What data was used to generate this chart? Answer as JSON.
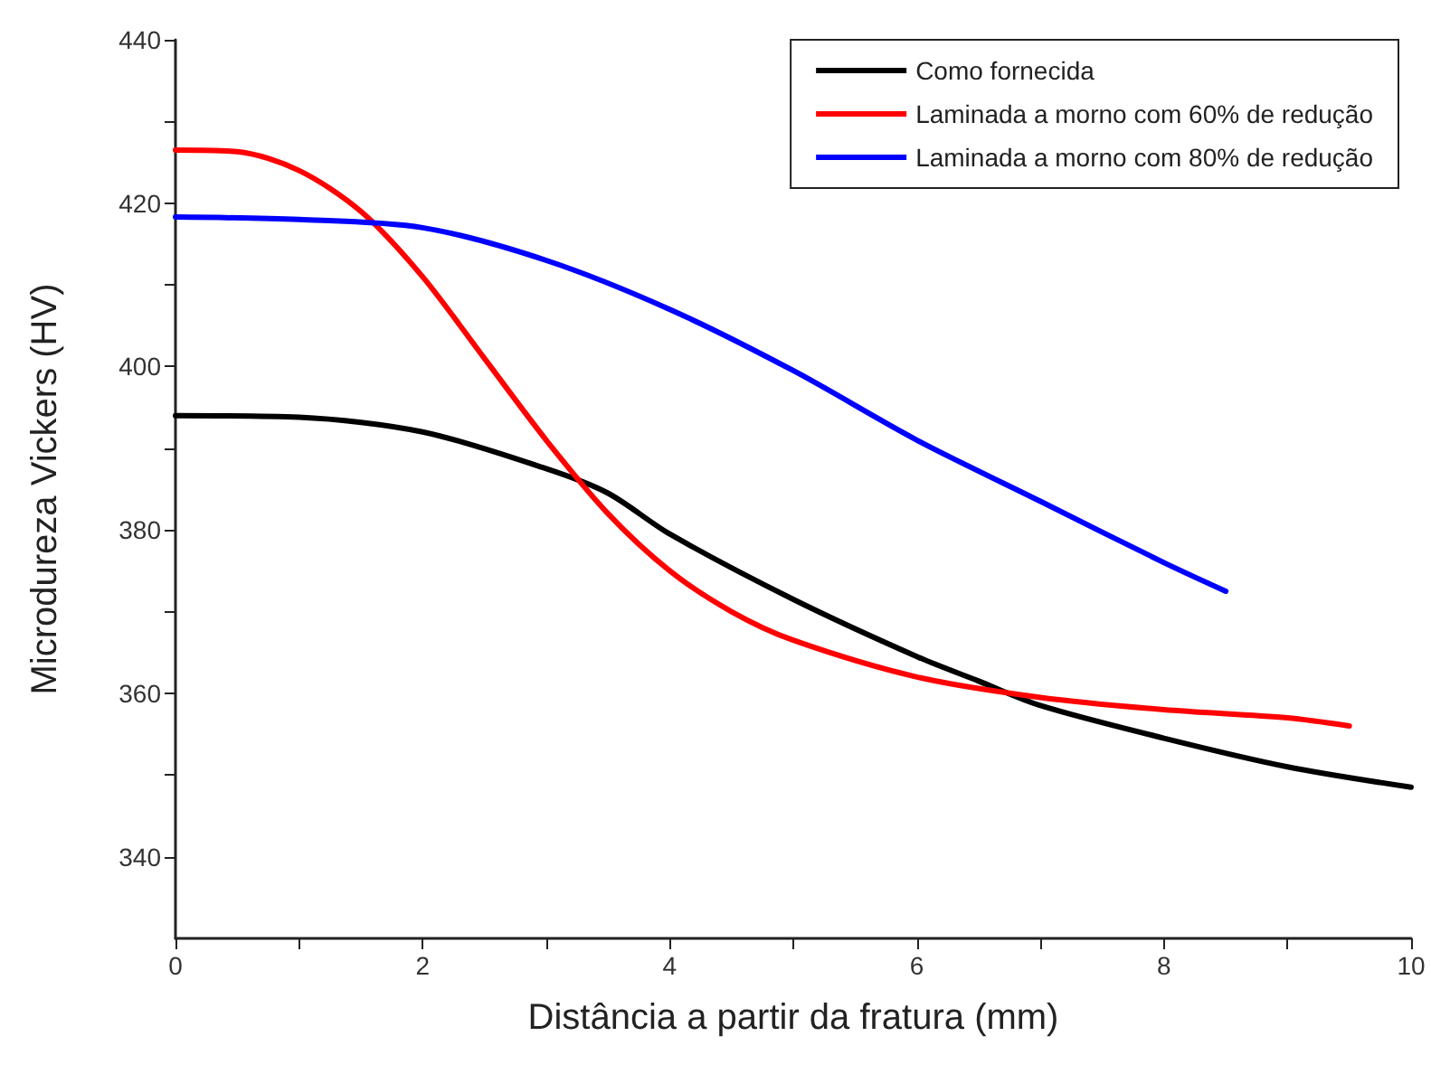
{
  "chart_data": {
    "type": "line",
    "xlabel": "Distância a partir da fratura (mm)",
    "ylabel": "Microdureza Vickers (HV)",
    "xlim": [
      0,
      10
    ],
    "xticks": [
      0,
      {
        "value": 1,
        "label": null
      },
      2,
      {
        "value": 3,
        "label": null
      },
      4,
      {
        "value": 5,
        "label": null
      },
      6,
      {
        "value": 7,
        "label": null
      },
      8,
      {
        "value": 9,
        "label": null
      },
      10
    ],
    "ylim": [
      330,
      440
    ],
    "yticks": [
      340,
      {
        "value": 350,
        "label": null
      },
      360,
      {
        "value": 370,
        "label": null
      },
      380,
      {
        "value": 390,
        "label": null
      },
      400,
      {
        "value": 410,
        "label": null
      },
      420,
      {
        "value": 430,
        "label": null
      },
      440
    ],
    "legend": "top right",
    "grid": false,
    "marker": "none",
    "line_style": "solid",
    "series": [
      {
        "name": "Como fornecida",
        "color": "#000000",
        "x": [
          0,
          1,
          2,
          3,
          3.5,
          4,
          5,
          6,
          6.5,
          7,
          8,
          9,
          10
        ],
        "values": [
          394,
          393.8,
          392,
          387.5,
          384.5,
          379.5,
          371.5,
          364.5,
          361.5,
          358.5,
          354.5,
          351,
          348.5
        ]
      },
      {
        "name": "Laminada a morno com 60% de redução",
        "color": "#ff0000",
        "x": [
          0,
          0.5,
          1,
          1.5,
          2,
          2.5,
          3,
          3.5,
          4,
          4.5,
          5,
          6,
          7,
          8,
          9,
          9.5
        ],
        "values": [
          426.5,
          426.3,
          424,
          419,
          411,
          401,
          391,
          382,
          375,
          370,
          366.5,
          362,
          359.5,
          358,
          357,
          356
        ]
      },
      {
        "name": "Laminada a morno com 80% de redução",
        "color": "#0000ff",
        "x": [
          0,
          1,
          2,
          3,
          4,
          5,
          6,
          7,
          8,
          8.5
        ],
        "values": [
          418.3,
          418,
          417,
          413,
          407,
          399.5,
          391,
          383.5,
          376,
          372.5
        ]
      }
    ]
  }
}
